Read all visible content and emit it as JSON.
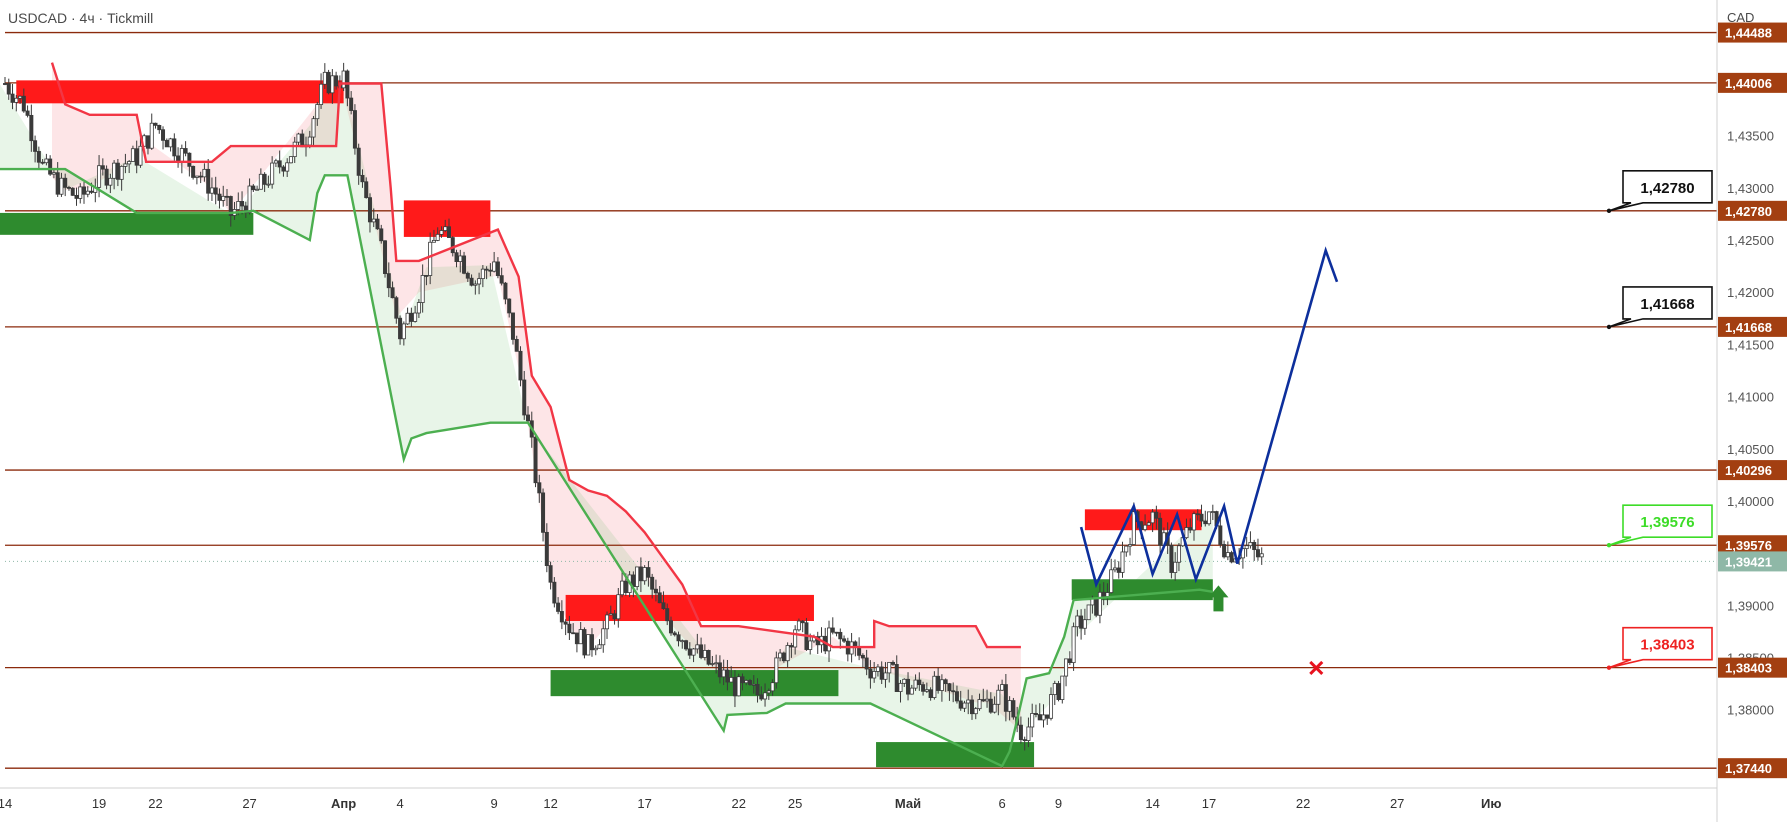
{
  "header": {
    "title": "USDCAD · 4ч · Tickmill"
  },
  "colors": {
    "level_line": "#8b2a0c",
    "resistance": "#ff1a1a",
    "support": "#2e8b2e",
    "trail_down": "#f23645",
    "trail_up": "#4caf50",
    "projection": "#0d2f9c",
    "price_tag": "#a33f11",
    "last_price": "#8fb8a7"
  },
  "chart_data": {
    "type": "candlestick",
    "symbol": "USDCAD",
    "timeframe": "4ч",
    "currency_label": "CAD",
    "ylim": [
      1.3725,
      1.448
    ],
    "x_range_days": [
      0,
      91
    ],
    "x_ticks": [
      {
        "day": 0,
        "label": "14"
      },
      {
        "day": 5,
        "label": "19"
      },
      {
        "day": 8,
        "label": "22"
      },
      {
        "day": 13,
        "label": "27"
      },
      {
        "day": 18,
        "label": "Апр"
      },
      {
        "day": 21,
        "label": "4"
      },
      {
        "day": 26,
        "label": "9"
      },
      {
        "day": 29,
        "label": "12"
      },
      {
        "day": 34,
        "label": "17"
      },
      {
        "day": 39,
        "label": "22"
      },
      {
        "day": 42,
        "label": "25"
      },
      {
        "day": 48,
        "label": "Май"
      },
      {
        "day": 53,
        "label": "6"
      },
      {
        "day": 56,
        "label": "9"
      },
      {
        "day": 61,
        "label": "14"
      },
      {
        "day": 64,
        "label": "17"
      },
      {
        "day": 69,
        "label": "22"
      },
      {
        "day": 74,
        "label": "27"
      },
      {
        "day": 79,
        "label": "Ию"
      }
    ],
    "y_ticks": [
      "1,43500",
      "1,43000",
      "1,42500",
      "1,42000",
      "1,41500",
      "1,41000",
      "1,40500",
      "1,40000",
      "1,39000",
      "1,38500",
      "1,38000"
    ],
    "levels": [
      {
        "value": 1.44488,
        "label": "1,44488"
      },
      {
        "value": 1.44006,
        "label": "1,44006"
      },
      {
        "value": 1.4278,
        "label": "1,42780"
      },
      {
        "value": 1.41668,
        "label": "1,41668"
      },
      {
        "value": 1.40296,
        "label": "1,40296"
      },
      {
        "value": 1.39576,
        "label": "1,39576"
      },
      {
        "value": 1.38403,
        "label": "1,38403"
      },
      {
        "value": 1.3744,
        "label": "1,37440"
      }
    ],
    "last_price": {
      "value": 1.39421,
      "label": "1,39421"
    },
    "callouts": [
      {
        "value": 1.4278,
        "label": "1,42780",
        "role": "target"
      },
      {
        "value": 1.41668,
        "label": "1,41668",
        "role": "target"
      },
      {
        "value": 1.39576,
        "label": "1,39576",
        "role": "entry"
      },
      {
        "value": 1.38403,
        "label": "1,38403",
        "role": "stop"
      }
    ],
    "close_path": [
      [
        0,
        1.44
      ],
      [
        1,
        1.438
      ],
      [
        2,
        1.432
      ],
      [
        3,
        1.43
      ],
      [
        4,
        1.429
      ],
      [
        5,
        1.431
      ],
      [
        6,
        1.432
      ],
      [
        7,
        1.433
      ],
      [
        8,
        1.436
      ],
      [
        9,
        1.434
      ],
      [
        10,
        1.432
      ],
      [
        11,
        1.43
      ],
      [
        12,
        1.4275
      ],
      [
        13,
        1.429
      ],
      [
        14,
        1.431
      ],
      [
        15,
        1.433
      ],
      [
        16,
        1.435
      ],
      [
        17,
        1.44
      ],
      [
        18,
        1.4405
      ],
      [
        19,
        1.43
      ],
      [
        20,
        1.424
      ],
      [
        21,
        1.416
      ],
      [
        22,
        1.42
      ],
      [
        23,
        1.426
      ],
      [
        24,
        1.424
      ],
      [
        25,
        1.421
      ],
      [
        26,
        1.423
      ],
      [
        27,
        1.416
      ],
      [
        28,
        1.405
      ],
      [
        29,
        1.392
      ],
      [
        30,
        1.388
      ],
      [
        31,
        1.386
      ],
      [
        32,
        1.388
      ],
      [
        33,
        1.392
      ],
      [
        34,
        1.393
      ],
      [
        35,
        1.389
      ],
      [
        36,
        1.387
      ],
      [
        37,
        1.385
      ],
      [
        38,
        1.3835
      ],
      [
        39,
        1.382
      ],
      [
        40,
        1.3815
      ],
      [
        41,
        1.384
      ],
      [
        42,
        1.388
      ],
      [
        43,
        1.386
      ],
      [
        44,
        1.387
      ],
      [
        45,
        1.386
      ],
      [
        46,
        1.384
      ],
      [
        47,
        1.3835
      ],
      [
        48,
        1.382
      ],
      [
        49,
        1.3825
      ],
      [
        50,
        1.3815
      ],
      [
        51,
        1.381
      ],
      [
        52,
        1.3805
      ],
      [
        53,
        1.3815
      ],
      [
        54,
        1.378
      ],
      [
        55,
        1.379
      ],
      [
        56,
        1.382
      ],
      [
        57,
        1.388
      ],
      [
        58,
        1.39
      ],
      [
        59,
        1.393
      ],
      [
        60,
        1.398
      ],
      [
        61,
        1.3985
      ],
      [
        62,
        1.394
      ],
      [
        63,
        1.3975
      ],
      [
        64,
        1.399
      ],
      [
        65,
        1.395
      ],
      [
        66,
        1.3955
      ],
      [
        67,
        1.3942
      ]
    ],
    "zones": [
      {
        "type": "resistance",
        "x0": 0.6,
        "x1": 18,
        "y0": 1.4381,
        "y1": 1.4403
      },
      {
        "type": "support",
        "x0": -0.3,
        "x1": 13.2,
        "y0": 1.4255,
        "y1": 1.4276
      },
      {
        "type": "resistance",
        "x0": 21.2,
        "x1": 25.8,
        "y0": 1.4253,
        "y1": 1.4288
      },
      {
        "type": "resistance",
        "x0": 29.8,
        "x1": 43.0,
        "y0": 1.3885,
        "y1": 1.391
      },
      {
        "type": "support",
        "x0": 29.0,
        "x1": 44.3,
        "y0": 1.3813,
        "y1": 1.3838
      },
      {
        "type": "support",
        "x0": 46.3,
        "x1": 54.7,
        "y0": 1.3745,
        "y1": 1.3769
      },
      {
        "type": "resistance",
        "x0": 57.4,
        "x1": 63.6,
        "y0": 1.3972,
        "y1": 1.3992
      },
      {
        "type": "support",
        "x0": 56.7,
        "x1": 64.2,
        "y0": 1.3905,
        "y1": 1.3925
      }
    ],
    "trail_down_path": [
      [
        2.5,
        1.442
      ],
      [
        3.2,
        1.438
      ],
      [
        4.5,
        1.437
      ],
      [
        7.0,
        1.437
      ],
      [
        7.5,
        1.4325
      ],
      [
        11,
        1.4325
      ],
      [
        12,
        1.434
      ],
      [
        17.6,
        1.434
      ],
      [
        17.8,
        1.44
      ],
      [
        20.0,
        1.44
      ],
      [
        20.5,
        1.43
      ],
      [
        20.8,
        1.423
      ],
      [
        22.0,
        1.423
      ],
      [
        26.2,
        1.426
      ],
      [
        27.3,
        1.4215
      ],
      [
        28.0,
        1.412
      ],
      [
        29.0,
        1.409
      ],
      [
        30.0,
        1.402
      ],
      [
        31.0,
        1.401
      ],
      [
        32.0,
        1.4005
      ],
      [
        33.0,
        1.399
      ],
      [
        34.0,
        1.397
      ],
      [
        35.0,
        1.3945
      ],
      [
        36.0,
        1.392
      ],
      [
        37.0,
        1.388
      ],
      [
        39.0,
        1.388
      ],
      [
        43.0,
        1.387
      ],
      [
        44.0,
        1.386
      ],
      [
        46.2,
        1.386
      ],
      [
        46.2,
        1.3885
      ],
      [
        47.0,
        1.388
      ],
      [
        51.6,
        1.388
      ],
      [
        52.2,
        1.386
      ],
      [
        54.0,
        1.386
      ]
    ],
    "trail_up_path": [
      [
        -0.3,
        1.4318
      ],
      [
        3.2,
        1.4318
      ],
      [
        7.0,
        1.4276
      ],
      [
        12.0,
        1.4276
      ],
      [
        13.2,
        1.4278
      ],
      [
        16.2,
        1.425
      ],
      [
        16.6,
        1.4295
      ],
      [
        17.0,
        1.4312
      ],
      [
        18.2,
        1.4312
      ],
      [
        21.2,
        1.404
      ],
      [
        21.6,
        1.406
      ],
      [
        22.4,
        1.4065
      ],
      [
        25.8,
        1.4075
      ],
      [
        27.8,
        1.4075
      ],
      [
        38.2,
        1.378
      ],
      [
        38.4,
        1.3795
      ],
      [
        40.5,
        1.3797
      ],
      [
        41.5,
        1.3806
      ],
      [
        46.0,
        1.3806
      ],
      [
        53.0,
        1.3746
      ],
      [
        53.4,
        1.376
      ],
      [
        53.8,
        1.379
      ],
      [
        54.3,
        1.383
      ],
      [
        55.5,
        1.3835
      ],
      [
        56.3,
        1.387
      ],
      [
        56.8,
        1.3905
      ],
      [
        63.5,
        1.3915
      ],
      [
        64.2,
        1.3913
      ]
    ],
    "projection_path": [
      [
        57.2,
        1.3975
      ],
      [
        58.0,
        1.392
      ],
      [
        60.0,
        1.3995
      ],
      [
        61.0,
        1.393
      ],
      [
        62.3,
        1.3987
      ],
      [
        63.3,
        1.3925
      ],
      [
        64.8,
        1.3995
      ],
      [
        65.5,
        1.394
      ],
      [
        70.2,
        1.424
      ],
      [
        70.8,
        1.421
      ]
    ],
    "target_arrow": {
      "day": 64.5,
      "value": 1.39
    },
    "stop_marker": {
      "day": 69.7,
      "value": 1.384
    }
  }
}
